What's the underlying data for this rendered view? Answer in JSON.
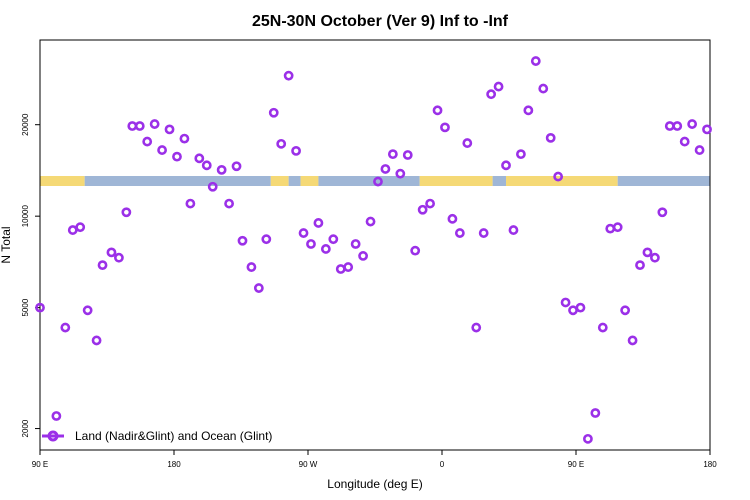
{
  "chart_data": {
    "type": "scatter",
    "title": "25N-30N October (Ver 9)   Inf to -Inf",
    "xlabel": "Longitude (deg E)",
    "ylabel": "N Total",
    "y_scale": "log",
    "x_ticks": [
      {
        "value": 90,
        "label": "90 E"
      },
      {
        "value": 180,
        "label": "180"
      },
      {
        "value": 270,
        "label": "90 W"
      },
      {
        "value": 360,
        "label": "0"
      },
      {
        "value": 450,
        "label": "90 E"
      },
      {
        "value": 540,
        "label": "180"
      }
    ],
    "y_ticks": [
      2000,
      5000,
      10000,
      20000
    ],
    "xlim": [
      90,
      540
    ],
    "ylim": [
      1700,
      38000
    ],
    "legend": {
      "position": "bottom-left",
      "label": "Land (Nadir&Glint) and Ocean (Glint)"
    },
    "colors": {
      "marker": "#9b30e8",
      "land": "#f5d976",
      "ocean": "#9fb6d6"
    },
    "series": [
      {
        "name": "Land (Nadir&Glint) and Ocean (Glint)",
        "x": [
          90,
          101,
          107,
          112,
          117,
          122,
          128,
          132,
          138,
          143,
          148,
          152,
          157,
          162,
          167,
          172,
          177,
          182,
          187,
          191,
          197,
          202,
          206,
          212,
          217,
          222,
          226,
          232,
          237,
          242,
          247,
          252,
          257,
          262,
          267,
          272,
          277,
          282,
          287,
          292,
          297,
          302,
          307,
          312,
          317,
          322,
          327,
          332,
          337,
          342,
          347,
          352,
          357,
          362,
          367,
          372,
          377,
          383,
          388,
          393,
          398,
          403,
          408,
          413,
          418,
          423,
          428,
          433,
          438,
          443,
          448,
          453,
          458,
          463,
          468,
          473,
          478,
          483,
          488,
          493,
          498,
          503,
          508,
          513,
          518,
          523,
          528,
          533,
          538
        ],
        "y": [
          5000,
          2200,
          4300,
          9000,
          9200,
          4900,
          3900,
          6900,
          7600,
          7300,
          10300,
          19800,
          19800,
          17600,
          20100,
          16500,
          19300,
          15700,
          18000,
          11000,
          15500,
          14700,
          12500,
          14200,
          11000,
          14600,
          8300,
          6800,
          5800,
          8400,
          21900,
          17300,
          29000,
          16400,
          8800,
          8100,
          9500,
          7800,
          8400,
          6700,
          6800,
          8100,
          7400,
          9600,
          13000,
          14300,
          16000,
          13800,
          15900,
          7700,
          10500,
          11000,
          22300,
          19600,
          9800,
          8800,
          17400,
          4300,
          8800,
          25200,
          26700,
          14700,
          9000,
          16000,
          22300,
          32400,
          26300,
          18100,
          13500,
          5200,
          4900,
          5000,
          1850,
          2250,
          4300,
          9100,
          9200,
          4900,
          3900,
          6900,
          7600,
          7300,
          10300,
          19800,
          19800,
          17600,
          20100,
          16500,
          19300
        ]
      }
    ]
  },
  "surface_bar": {
    "segments": [
      {
        "type": "land",
        "from": 90,
        "to": 120
      },
      {
        "type": "ocean",
        "from": 120,
        "to": 245
      },
      {
        "type": "land",
        "from": 245,
        "to": 257
      },
      {
        "type": "ocean",
        "from": 257,
        "to": 265
      },
      {
        "type": "land",
        "from": 265,
        "to": 277
      },
      {
        "type": "ocean",
        "from": 277,
        "to": 345
      },
      {
        "type": "land",
        "from": 345,
        "to": 394
      },
      {
        "type": "ocean",
        "from": 394,
        "to": 403
      },
      {
        "type": "land",
        "from": 403,
        "to": 478
      },
      {
        "type": "ocean",
        "from": 478,
        "to": 540
      }
    ]
  }
}
